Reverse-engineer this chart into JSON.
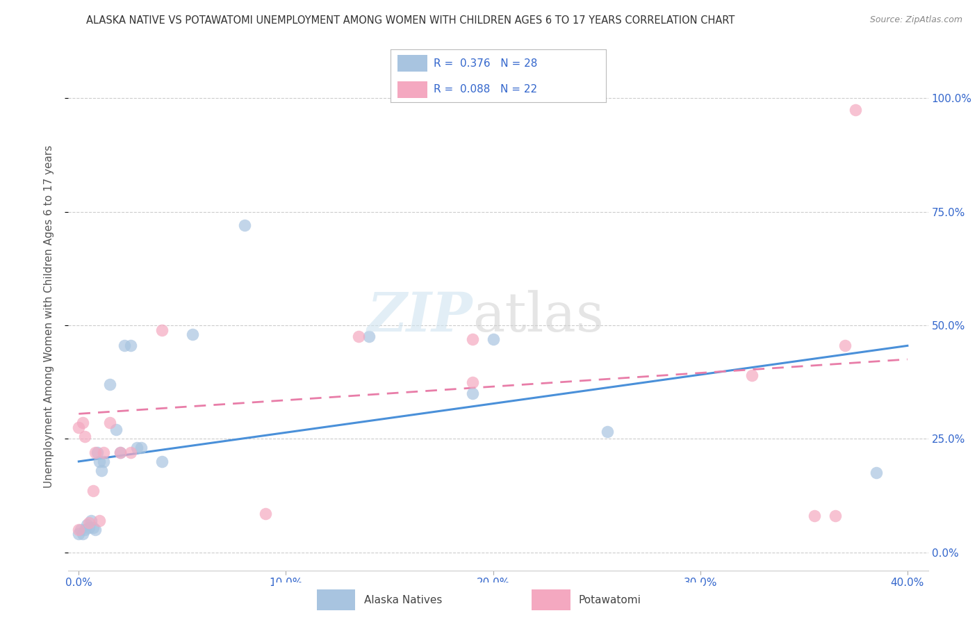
{
  "title": "ALASKA NATIVE VS POTAWATOMI UNEMPLOYMENT AMONG WOMEN WITH CHILDREN AGES 6 TO 17 YEARS CORRELATION CHART",
  "source": "Source: ZipAtlas.com",
  "xlabel_vals": [
    0.0,
    0.1,
    0.2,
    0.3,
    0.4
  ],
  "ylabel": "Unemployment Among Women with Children Ages 6 to 17 years",
  "ylabel_ticks": [
    0.0,
    0.25,
    0.5,
    0.75,
    1.0
  ],
  "ylabel_labels": [
    "0.0%",
    "25.0%",
    "50.0%",
    "75.0%",
    "100.0%"
  ],
  "xlim": [
    -0.005,
    0.41
  ],
  "ylim": [
    -0.04,
    1.08
  ],
  "alaska_color": "#a8c4e0",
  "potawatomi_color": "#f4a8c0",
  "alaska_line_color": "#4a90d9",
  "potawatomi_line_color": "#e87da8",
  "alaska_points_x": [
    0.0,
    0.001,
    0.002,
    0.003,
    0.004,
    0.005,
    0.006,
    0.007,
    0.008,
    0.009,
    0.01,
    0.011,
    0.012,
    0.015,
    0.018,
    0.02,
    0.022,
    0.025,
    0.028,
    0.03,
    0.04,
    0.055,
    0.08,
    0.14,
    0.19,
    0.2,
    0.255,
    0.385
  ],
  "alaska_points_y": [
    0.04,
    0.05,
    0.04,
    0.05,
    0.06,
    0.055,
    0.07,
    0.055,
    0.05,
    0.22,
    0.2,
    0.18,
    0.2,
    0.37,
    0.27,
    0.22,
    0.455,
    0.455,
    0.23,
    0.23,
    0.2,
    0.48,
    0.72,
    0.475,
    0.35,
    0.47,
    0.265,
    0.175
  ],
  "potawatomi_points_x": [
    0.0,
    0.0,
    0.002,
    0.003,
    0.005,
    0.007,
    0.008,
    0.01,
    0.012,
    0.015,
    0.02,
    0.025,
    0.04,
    0.09,
    0.135,
    0.19,
    0.19,
    0.325,
    0.355,
    0.365,
    0.37,
    0.375
  ],
  "potawatomi_points_y": [
    0.275,
    0.05,
    0.285,
    0.255,
    0.065,
    0.135,
    0.22,
    0.07,
    0.22,
    0.285,
    0.22,
    0.22,
    0.49,
    0.085,
    0.475,
    0.47,
    0.375,
    0.39,
    0.08,
    0.08,
    0.455,
    0.975
  ],
  "alaska_trend_x": [
    0.0,
    0.4
  ],
  "alaska_trend_y": [
    0.2,
    0.455
  ],
  "potawatomi_trend_x": [
    0.0,
    0.4
  ],
  "potawatomi_trend_y": [
    0.305,
    0.425
  ],
  "background_color": "#ffffff",
  "grid_color": "#cccccc",
  "marker_size": 160,
  "legend_text_color": "#3366cc",
  "legend_r1": "R =  0.376   N = 28",
  "legend_r2": "R =  0.088   N = 22"
}
